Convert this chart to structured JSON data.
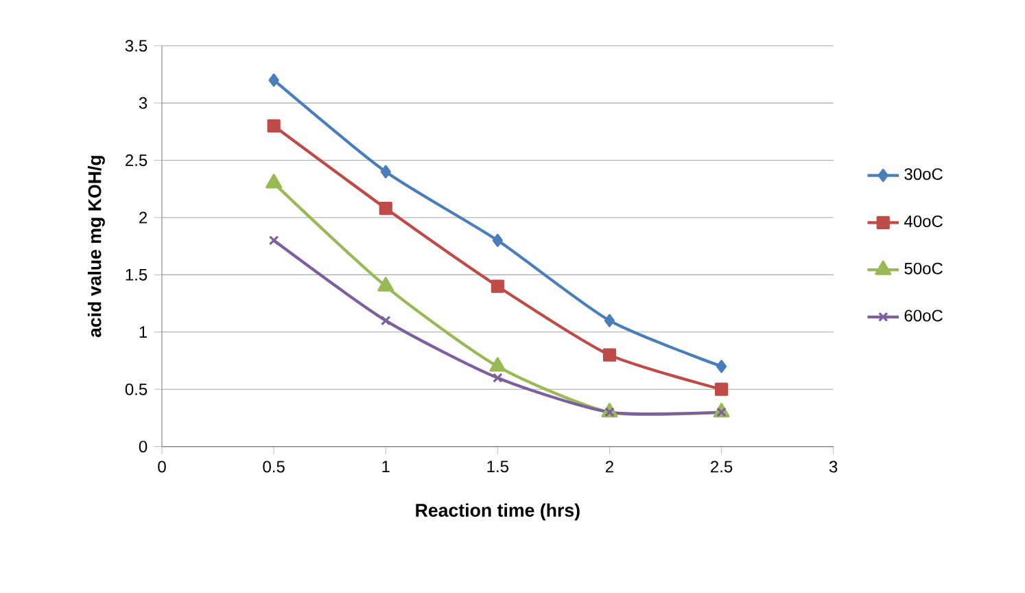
{
  "chart_data": {
    "type": "line",
    "xlabel": "Reaction time (hrs)",
    "ylabel": "acid value mg KOH/g",
    "x": [
      0.5,
      1,
      1.5,
      2,
      2.5
    ],
    "series": [
      {
        "name": "30oC",
        "color": "#4a7ebb",
        "marker": "diamond",
        "values": [
          3.2,
          2.4,
          1.8,
          1.1,
          0.7
        ]
      },
      {
        "name": "40oC",
        "color": "#be4b48",
        "marker": "square",
        "values": [
          2.8,
          2.08,
          1.4,
          0.8,
          0.5
        ]
      },
      {
        "name": "50oC",
        "color": "#98b954",
        "marker": "triangle",
        "values": [
          2.3,
          1.4,
          0.7,
          0.3,
          0.3
        ]
      },
      {
        "name": "60oC",
        "color": "#7d5fa0",
        "marker": "cross",
        "values": [
          1.8,
          1.1,
          0.6,
          0.3,
          0.3
        ]
      }
    ],
    "xlim": [
      0,
      3
    ],
    "ylim": [
      0,
      3.5
    ],
    "xticks": [
      0,
      0.5,
      1,
      1.5,
      2,
      2.5,
      3
    ],
    "yticks": [
      0,
      0.5,
      1,
      1.5,
      2,
      2.5,
      3,
      3.5
    ],
    "grid": "y",
    "legend": "right"
  }
}
